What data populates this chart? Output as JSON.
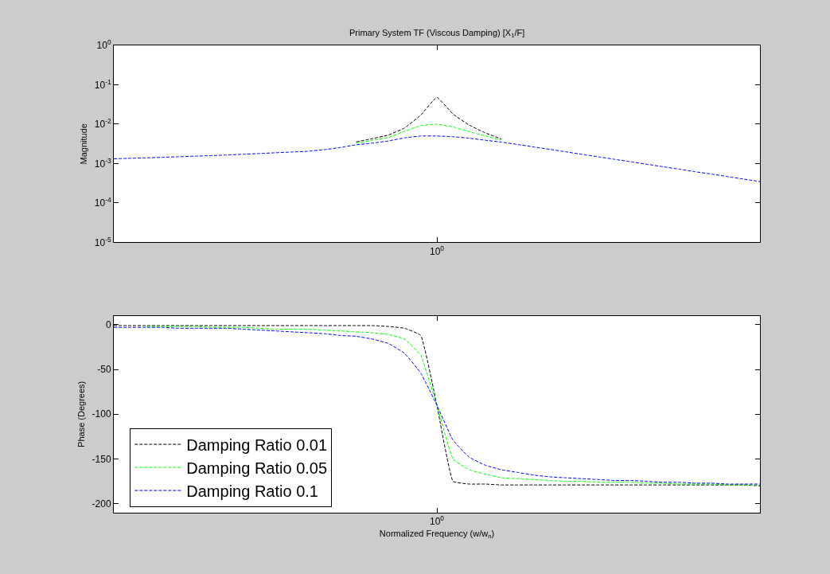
{
  "chart_data": [
    {
      "type": "line",
      "title": "Primary System TF (Viscous Damping) [X$_{1}$/F]",
      "ylabel": "Magnitude",
      "log": "y",
      "line_style": "dashed",
      "marker": "none",
      "categories": [
        null,
        null,
        null,
        null,
        null,
        null,
        null,
        null,
        null,
        null,
        null,
        null,
        null,
        null,
        null,
        null,
        null,
        null,
        null,
        null,
        "10$^{0}$",
        null,
        null,
        null,
        null,
        null,
        null,
        null,
        null,
        null,
        null,
        null,
        null,
        null,
        null,
        null,
        null,
        null,
        null,
        null,
        null
      ],
      "ylim": [
        1e-05,
        1
      ],
      "yticks": [
        {
          "value": 1,
          "label": "10$^{0}$"
        },
        {
          "value": 0.1,
          "label": "10$^{-1}$"
        },
        {
          "value": 0.01,
          "label": "10$^{-2}$"
        },
        {
          "value": 0.001,
          "label": "10$^{-3}$"
        },
        {
          "value": 0.0001,
          "label": "10$^{-4}$"
        },
        {
          "value": 1e-05,
          "label": "10$^{-5}$"
        }
      ],
      "series": [
        {
          "color": "#000000",
          "values": [
            null,
            null,
            null,
            null,
            null,
            null,
            null,
            null,
            null,
            null,
            null,
            null,
            null,
            null,
            null,
            0.00355,
            0.0043,
            0.0053,
            0.008,
            0.017,
            0.048,
            0.018,
            0.0095,
            0.006,
            0.0042,
            null,
            null,
            null,
            null,
            null,
            null,
            null,
            null,
            null,
            null,
            null,
            null,
            null,
            null,
            null,
            null
          ]
        },
        {
          "color": "#00ff00",
          "values": [
            null,
            null,
            null,
            null,
            null,
            null,
            null,
            null,
            null,
            null,
            null,
            null,
            null,
            null,
            null,
            0.0033,
            0.0039,
            0.0046,
            0.0066,
            0.0092,
            0.01,
            0.0085,
            0.0065,
            0.005,
            0.0039,
            null,
            null,
            null,
            null,
            null,
            null,
            null,
            null,
            null,
            null,
            null,
            null,
            null,
            null,
            null,
            null
          ]
        },
        {
          "color": "#0000ff",
          "values": [
            0.00132,
            0.00136,
            0.0014,
            0.00144,
            0.00149,
            0.00154,
            0.00159,
            0.00165,
            0.00172,
            0.0018,
            0.00188,
            0.00196,
            0.00205,
            0.00225,
            0.00255,
            0.003,
            0.0033,
            0.00375,
            0.0045,
            0.005,
            0.005,
            0.0048,
            0.0044,
            0.0039,
            0.0035,
            0.00305,
            0.00264,
            0.00229,
            0.00198,
            0.00171,
            0.00148,
            0.00128,
            0.00111,
            0.00096,
            0.00083,
            0.00072,
            0.00062,
            0.00054,
            0.000466,
            0.000403,
            0.000349
          ]
        }
      ]
    },
    {
      "type": "line",
      "xlabel": "Normalized Frequency (w/w$_{n}$)",
      "ylabel": "Phase (Degrees)",
      "legend": "bottom left",
      "line_style": "dashed",
      "marker": "none",
      "categories": [
        null,
        null,
        null,
        null,
        null,
        null,
        null,
        null,
        null,
        null,
        null,
        null,
        null,
        null,
        null,
        null,
        null,
        null,
        null,
        null,
        "10$^{0}$",
        null,
        null,
        null,
        null,
        null,
        null,
        null,
        null,
        null,
        null,
        null,
        null,
        null,
        null,
        null,
        null,
        null,
        null,
        null,
        null
      ],
      "ylim": [
        -210,
        10
      ],
      "yticks": [
        0,
        -50,
        -100,
        -150,
        -200
      ],
      "series": [
        {
          "name": "Damping Ratio 0.01",
          "color": "#000000",
          "values": [
            -1,
            -1,
            -1,
            -1,
            -1,
            -1,
            -1,
            -1,
            -1,
            -1,
            -1,
            -1,
            -1,
            -1,
            -1,
            -1,
            -1,
            -2,
            -4,
            -12,
            -90,
            -175,
            -178,
            -178,
            -179,
            -179,
            -179,
            -179,
            -179,
            -179,
            -179,
            -179,
            -179,
            -179,
            -179,
            -179,
            -179,
            -179,
            -179,
            -179,
            -180
          ]
        },
        {
          "name": "Damping Ratio 0.05",
          "color": "#00ff00",
          "values": [
            null,
            null,
            -2,
            -2,
            -2,
            -2,
            -3,
            -3,
            -3,
            -4,
            -5,
            -5,
            -5,
            -6,
            -7,
            -8,
            -9,
            -11,
            -16,
            -34,
            -90,
            -150,
            -162,
            -167,
            -171,
            -172,
            -173,
            -174,
            -175,
            -175,
            -176,
            -176,
            -176,
            -177,
            -177,
            -178,
            -178,
            -178,
            -179,
            -179,
            -179
          ]
        },
        {
          "name": "Damping Ratio 0.1",
          "color": "#0000ff",
          "values": [
            -3,
            -3,
            -3,
            -3,
            -4,
            -4,
            -4,
            -4,
            -5,
            -6,
            -7,
            -8,
            -9,
            -10,
            -12,
            -13,
            -16,
            -21,
            -32,
            -54,
            -90,
            -129,
            -148,
            -157,
            -162,
            -165,
            -168,
            -170,
            -171,
            -172,
            -173,
            -174,
            -174,
            -175,
            -176,
            -176,
            -177,
            -177,
            -178,
            -178,
            -178
          ]
        }
      ]
    }
  ]
}
